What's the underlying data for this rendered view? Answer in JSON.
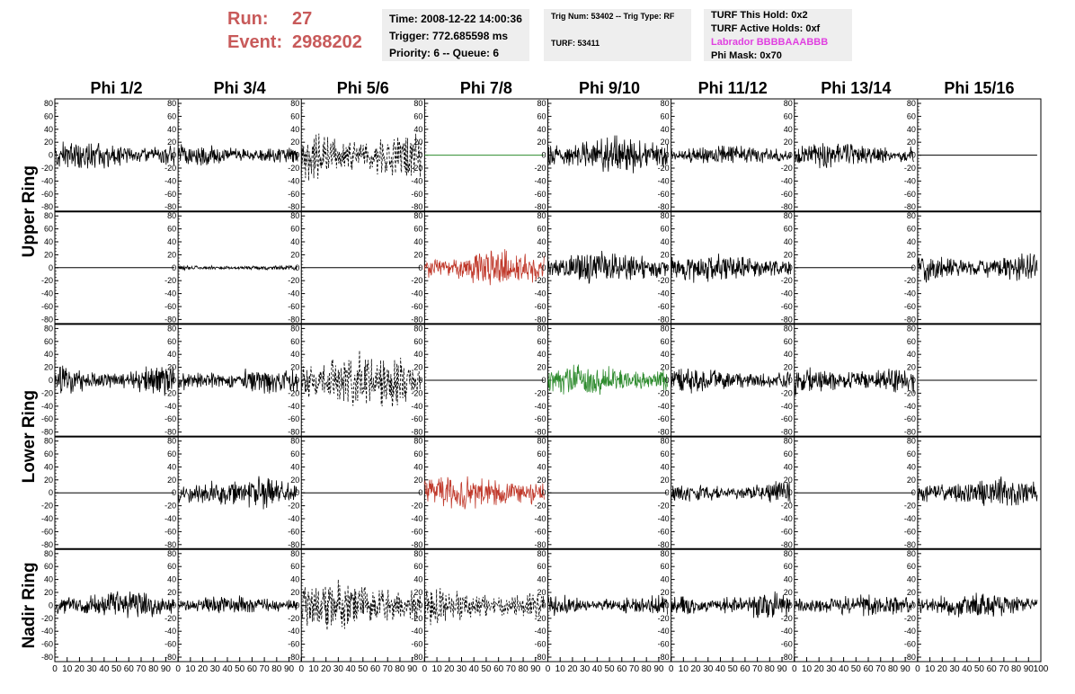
{
  "header": {
    "run_label": "Run:",
    "run_value": "27",
    "event_label": "Event:",
    "event_value": "2988202",
    "time": "Time: 2008-12-22 14:00:36",
    "trigger": "Trigger: 772.685598 ms",
    "priority": "Priority: 6 -- Queue: 6",
    "trig_num": "Trig Num: 53402 -- Trig Type: RF",
    "turf": "TURF: 53411",
    "turf_this_hold": "TURF This Hold: 0x2",
    "turf_active_holds": "TURF Active Holds: 0xf",
    "labrador": "Labrador BBBBAAABBB",
    "phi_mask": "Phi Mask: 0x70"
  },
  "colors": {
    "run_text": "#c85a5a",
    "labrador_text": "#e040e0",
    "trace_default": "#000000",
    "trace_red": "#c0392b",
    "trace_green": "#2e8b2e",
    "info_bg": "#eeeeee"
  },
  "chart_data": {
    "type": "line",
    "columns": [
      "Phi 1/2",
      "Phi 3/4",
      "Phi 5/6",
      "Phi 7/8",
      "Phi 9/10",
      "Phi 11/12",
      "Phi 13/14",
      "Phi 15/16"
    ],
    "ring_labels": [
      {
        "text": "Upper Ring",
        "rows": [
          0,
          1
        ]
      },
      {
        "text": "Lower Ring",
        "rows": [
          2,
          3
        ]
      },
      {
        "text": "Nadir Ring",
        "rows": [
          4,
          4
        ]
      }
    ],
    "ylim": [
      -80,
      80
    ],
    "xlim": [
      0,
      100
    ],
    "yticks": [
      "80",
      "60",
      "40",
      "20",
      "0",
      "-20",
      "-40",
      "-60",
      "-80"
    ],
    "xticks": [
      "0",
      "10",
      "20",
      "30",
      "40",
      "50",
      "60",
      "70",
      "80",
      "90",
      "100"
    ],
    "panels": [
      [
        {
          "amp": 16,
          "color": "black",
          "style": "solid"
        },
        {
          "amp": 12,
          "color": "black",
          "style": "solid"
        },
        {
          "amp": 30,
          "color": "black",
          "style": "dashed"
        },
        {
          "amp": 0,
          "color": "green",
          "style": "solid"
        },
        {
          "amp": 20,
          "color": "black",
          "style": "solid"
        },
        {
          "amp": 12,
          "color": "black",
          "style": "solid"
        },
        {
          "amp": 14,
          "color": "black",
          "style": "solid"
        },
        {
          "amp": 0,
          "color": "black",
          "style": "solid"
        }
      ],
      [
        {
          "amp": 0,
          "color": "black",
          "style": "solid"
        },
        {
          "amp": 3,
          "color": "black",
          "style": "solid"
        },
        {
          "amp": 0,
          "color": "black",
          "style": "solid"
        },
        {
          "amp": 20,
          "color": "red",
          "style": "solid"
        },
        {
          "amp": 18,
          "color": "black",
          "style": "solid"
        },
        {
          "amp": 16,
          "color": "black",
          "style": "solid"
        },
        {
          "amp": 0,
          "color": "black",
          "style": "solid"
        },
        {
          "amp": 16,
          "color": "black",
          "style": "solid"
        }
      ],
      [
        {
          "amp": 16,
          "color": "black",
          "style": "solid"
        },
        {
          "amp": 14,
          "color": "black",
          "style": "solid"
        },
        {
          "amp": 32,
          "color": "black",
          "style": "dashed"
        },
        {
          "amp": 0,
          "color": "black",
          "style": "solid"
        },
        {
          "amp": 18,
          "color": "green",
          "style": "solid"
        },
        {
          "amp": 14,
          "color": "black",
          "style": "solid"
        },
        {
          "amp": 16,
          "color": "black",
          "style": "solid"
        },
        {
          "amp": 0,
          "color": "black",
          "style": "solid"
        }
      ],
      [
        {
          "amp": 0,
          "color": "black",
          "style": "solid"
        },
        {
          "amp": 18,
          "color": "black",
          "style": "solid"
        },
        {
          "amp": 0,
          "color": "black",
          "style": "solid"
        },
        {
          "amp": 20,
          "color": "red",
          "style": "solid"
        },
        {
          "amp": 0,
          "color": "black",
          "style": "solid"
        },
        {
          "amp": 12,
          "color": "black",
          "style": "solid"
        },
        {
          "amp": 0,
          "color": "black",
          "style": "solid"
        },
        {
          "amp": 16,
          "color": "black",
          "style": "solid"
        }
      ],
      [
        {
          "amp": 16,
          "color": "black",
          "style": "solid"
        },
        {
          "amp": 10,
          "color": "black",
          "style": "solid"
        },
        {
          "amp": 28,
          "color": "black",
          "style": "dashed"
        },
        {
          "amp": 20,
          "color": "black",
          "style": "dashed"
        },
        {
          "amp": 12,
          "color": "black",
          "style": "solid"
        },
        {
          "amp": 14,
          "color": "black",
          "style": "solid"
        },
        {
          "amp": 12,
          "color": "black",
          "style": "solid"
        },
        {
          "amp": 14,
          "color": "black",
          "style": "solid"
        }
      ]
    ]
  }
}
